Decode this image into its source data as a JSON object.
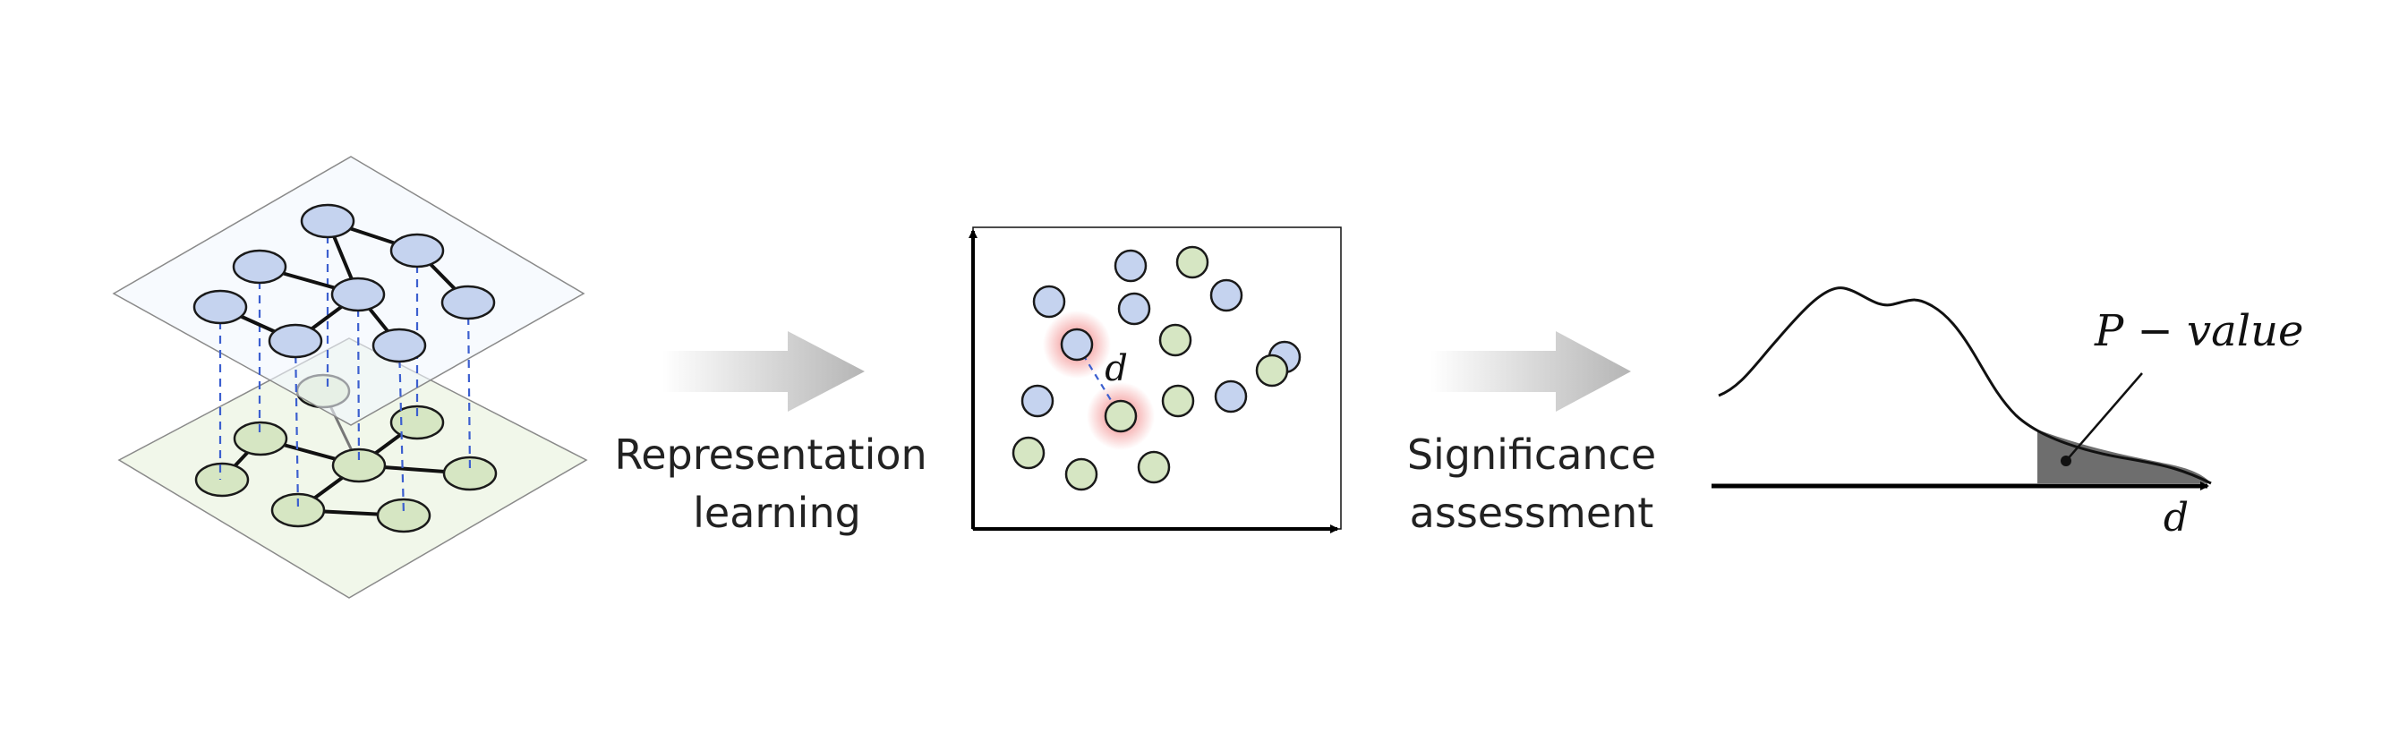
{
  "steps": [
    {
      "line1": "Representation",
      "line2": "learning"
    },
    {
      "line1": "Significance",
      "line2": "assessment"
    }
  ],
  "embedding": {
    "distance_symbol": "d"
  },
  "distribution": {
    "annotation": "P − value",
    "axis_symbol": "d"
  },
  "colors": {
    "layer_top_fill": "#f2f7fd",
    "layer_bottom_fill": "#f1f7ea",
    "node_blue": "#c5d3ef",
    "node_green": "#d6e6c3",
    "dashed_link": "#3c5fcf",
    "highlight_glow": "#f28c8c",
    "tail_fill": "#6e6e6e",
    "arrow_gradient_end": "#b5b5b5"
  }
}
